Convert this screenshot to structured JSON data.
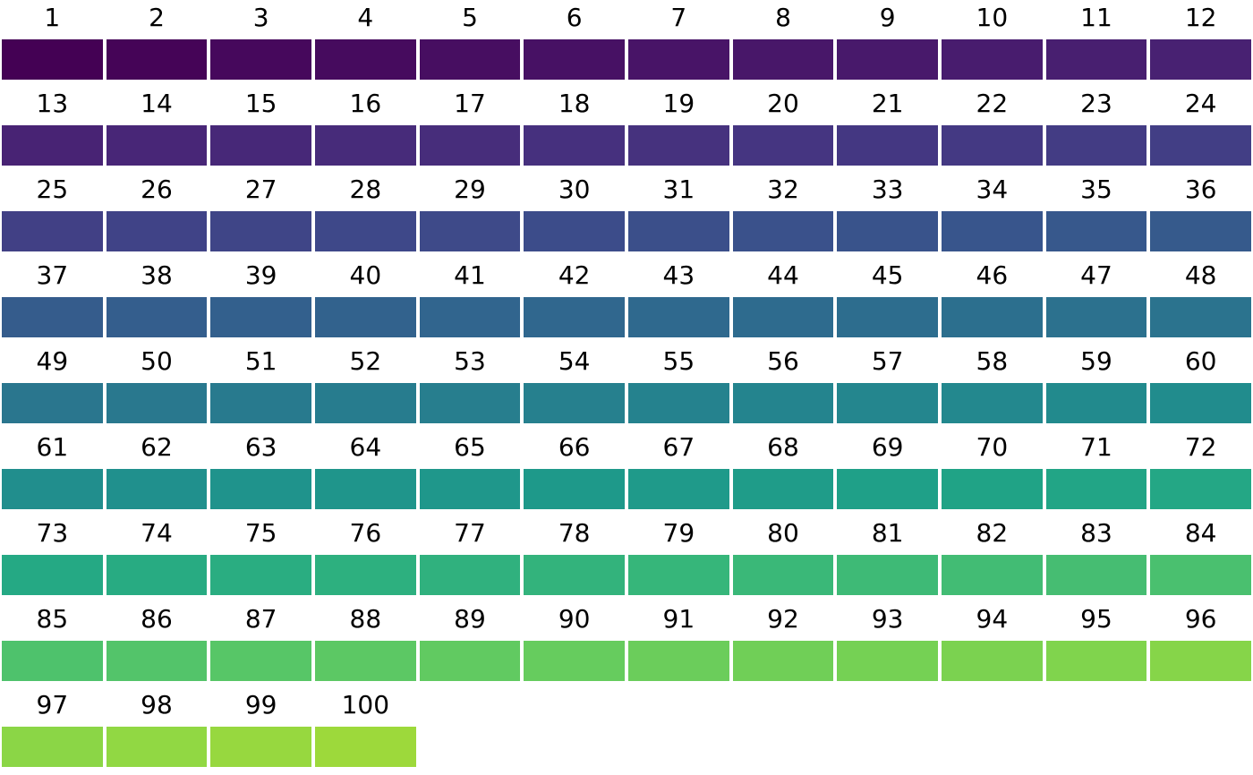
{
  "chart_data": {
    "type": "table",
    "columns": 12,
    "labels": [
      "1",
      "2",
      "3",
      "4",
      "5",
      "6",
      "7",
      "8",
      "9",
      "10",
      "11",
      "12",
      "13",
      "14",
      "15",
      "16",
      "17",
      "18",
      "19",
      "20",
      "21",
      "22",
      "23",
      "24",
      "25",
      "26",
      "27",
      "28",
      "29",
      "30",
      "31",
      "32",
      "33",
      "34",
      "35",
      "36",
      "37",
      "38",
      "39",
      "40",
      "41",
      "42",
      "43",
      "44",
      "45",
      "46",
      "47",
      "48",
      "49",
      "50",
      "51",
      "52",
      "53",
      "54",
      "55",
      "56",
      "57",
      "58",
      "59",
      "60",
      "61",
      "62",
      "63",
      "64",
      "65",
      "66",
      "67",
      "68",
      "69",
      "70",
      "71",
      "72",
      "73",
      "74",
      "75",
      "76",
      "77",
      "78",
      "79",
      "80",
      "81",
      "82",
      "83",
      "84",
      "85",
      "86",
      "87",
      "88",
      "89",
      "90",
      "91",
      "92",
      "93",
      "94",
      "95",
      "96",
      "97",
      "98",
      "99",
      "100"
    ],
    "colors": [
      "#440154",
      "#450457",
      "#46085c",
      "#460b5e",
      "#470e61",
      "#471164",
      "#481467",
      "#481769",
      "#48196b",
      "#481c6e",
      "#481f70",
      "#482172",
      "#482374",
      "#482677",
      "#472878",
      "#472b7a",
      "#472d7b",
      "#46307e",
      "#46327e",
      "#453581",
      "#443782",
      "#443983",
      "#433c84",
      "#423e85",
      "#414085",
      "#404387",
      "#3f4587",
      "#3e4889",
      "#3e4a89",
      "#3c4c8a",
      "#3b4f8a",
      "#3a518b",
      "#39538b",
      "#38558c",
      "#37588c",
      "#365a8c",
      "#355c8c",
      "#345e8d",
      "#33608d",
      "#32628d",
      "#31658e",
      "#30678e",
      "#2f698e",
      "#2e6b8e",
      "#2d6d8e",
      "#2c6f8e",
      "#2c718e",
      "#2b738e",
      "#2a768e",
      "#29788e",
      "#287a8e",
      "#277c8e",
      "#277e8e",
      "#26808e",
      "#25828e",
      "#24848e",
      "#24868e",
      "#23888e",
      "#228a8d",
      "#218c8d",
      "#218e8d",
      "#20908d",
      "#1f938c",
      "#1f958b",
      "#1f978b",
      "#1e998a",
      "#1f9a8a",
      "#1f9c89",
      "#1fa088",
      "#20a386",
      "#22a586",
      "#24a785",
      "#25a984",
      "#28ab82",
      "#2aad81",
      "#2db07f",
      "#30b17e",
      "#33b37c",
      "#36b67a",
      "#3ab878",
      "#3eba76",
      "#42bc74",
      "#46bd72",
      "#4ac06f",
      "#4ec26c",
      "#53c46a",
      "#57c667",
      "#5cc864",
      "#61ca61",
      "#66cc5e",
      "#6bcd5b",
      "#70cf57",
      "#75d154",
      "#7bd250",
      "#80d44d",
      "#86d549",
      "#8bd646",
      "#91d843",
      "#97d83f",
      "#9dd93b",
      "#a3da37",
      "#a8db34",
      "#aedc30",
      "#b4dd2c",
      "#badd2b",
      "#bfdf25",
      "#c5e022",
      "#cbe11e",
      "#d1e21b",
      "#d8e219",
      "#dde318",
      "#fde725"
    ]
  }
}
